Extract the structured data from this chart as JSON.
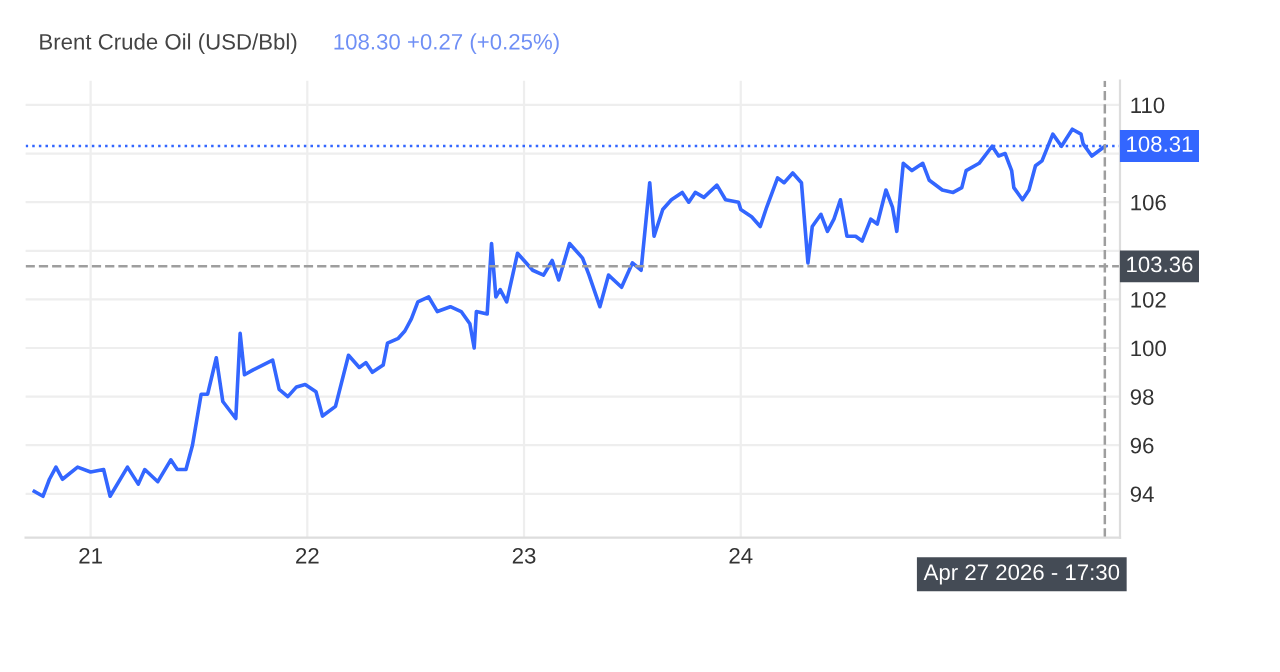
{
  "chart_data": {
    "type": "line",
    "title": "Brent Crude Oil (USD/Bbl)",
    "subtitle": "108.30 +0.27 (+0.25%)",
    "x": [
      20.74,
      20.78,
      20.81,
      20.84,
      20.87,
      20.94,
      21.0,
      21.06,
      21.09,
      21.17,
      21.22,
      21.25,
      21.31,
      21.37,
      21.4,
      21.44,
      21.47,
      21.51,
      21.54,
      21.58,
      21.61,
      21.67,
      21.69,
      21.71,
      21.75,
      21.84,
      21.87,
      21.91,
      21.95,
      21.99,
      22.04,
      22.07,
      22.13,
      22.19,
      22.24,
      22.27,
      22.3,
      22.35,
      22.37,
      22.42,
      22.45,
      22.48,
      22.51,
      22.56,
      22.6,
      22.66,
      22.71,
      22.75,
      22.77,
      22.78,
      22.83,
      22.85,
      22.87,
      22.89,
      22.92,
      22.97,
      23.04,
      23.09,
      23.13,
      23.16,
      23.21,
      23.27,
      23.3,
      23.35,
      23.39,
      23.45,
      23.5,
      23.54,
      23.58,
      23.6,
      23.64,
      23.68,
      23.73,
      23.76,
      23.79,
      23.83,
      23.89,
      23.93,
      23.99,
      24.0,
      24.05,
      24.09,
      24.12,
      24.17,
      24.2,
      24.24,
      24.28,
      24.31,
      24.33,
      24.37,
      24.4,
      24.43,
      24.46,
      24.49,
      24.53,
      24.56,
      24.6,
      24.63,
      24.67,
      24.7,
      24.72,
      24.75,
      24.79,
      24.84,
      24.87,
      24.93,
      24.98,
      25.02,
      25.04,
      25.1,
      25.16,
      25.19,
      25.22,
      25.25,
      25.26,
      25.3,
      25.33,
      25.36,
      25.39,
      25.44,
      25.48,
      25.53,
      25.57,
      25.58,
      25.62,
      25.68
    ],
    "series": [
      {
        "color": "#3366ff",
        "values": [
          94.1,
          93.9,
          94.6,
          95.1,
          94.6,
          95.1,
          94.9,
          95.0,
          93.9,
          95.1,
          94.4,
          95.0,
          94.5,
          95.4,
          95.0,
          95.0,
          96.0,
          98.1,
          98.1,
          99.6,
          97.8,
          97.1,
          100.6,
          98.9,
          99.1,
          99.5,
          98.3,
          98.0,
          98.4,
          98.5,
          98.2,
          97.2,
          97.6,
          99.7,
          99.2,
          99.4,
          99.0,
          99.3,
          100.2,
          100.4,
          100.7,
          101.2,
          101.9,
          102.1,
          101.5,
          101.7,
          101.5,
          101.0,
          100.0,
          101.5,
          101.4,
          104.3,
          102.1,
          102.4,
          101.9,
          103.9,
          103.2,
          103.0,
          103.6,
          102.8,
          104.3,
          103.7,
          103.0,
          101.7,
          103.0,
          102.5,
          103.5,
          103.2,
          106.8,
          104.6,
          105.7,
          106.1,
          106.4,
          106.0,
          106.4,
          106.2,
          106.7,
          106.1,
          106.0,
          105.7,
          105.4,
          105.0,
          105.8,
          107.0,
          106.8,
          107.2,
          106.8,
          103.5,
          105.0,
          105.5,
          104.8,
          105.3,
          106.1,
          104.6,
          104.6,
          104.4,
          105.3,
          105.1,
          106.5,
          105.8,
          104.8,
          107.6,
          107.3,
          107.6,
          106.9,
          106.5,
          106.4,
          106.6,
          107.3,
          107.6,
          108.3,
          107.9,
          108.0,
          107.3,
          106.6,
          106.1,
          106.5,
          107.5,
          107.7,
          108.8,
          108.3,
          109.0,
          108.8,
          108.4,
          107.9,
          108.3
        ]
      }
    ],
    "xlim": [
      20.7,
      25.75
    ],
    "xticks": [
      21,
      22,
      23,
      24
    ],
    "ylim": [
      92.2,
      111
    ],
    "yticks": [
      94,
      96,
      98,
      100,
      102,
      {
        "value": 104,
        "label": null
      },
      106,
      {
        "value": 108,
        "label": null
      },
      110
    ],
    "annotations": [
      "Apr 27 2026 - 17:30"
    ],
    "grid": true,
    "legend": false,
    "marker": "none",
    "line_style": "solid",
    "ref_lines": [
      {
        "axis": "y",
        "value": 108.31,
        "label": "108.31",
        "color": "#3366ff",
        "line_style": "dotted"
      },
      {
        "axis": "y",
        "value": 103.36,
        "label": "103.36",
        "color": "#9e9e9e",
        "line_style": "dashed"
      },
      {
        "axis": "x",
        "value": 25.68,
        "color": "#9e9e9e",
        "line_style": "dashed"
      }
    ]
  }
}
